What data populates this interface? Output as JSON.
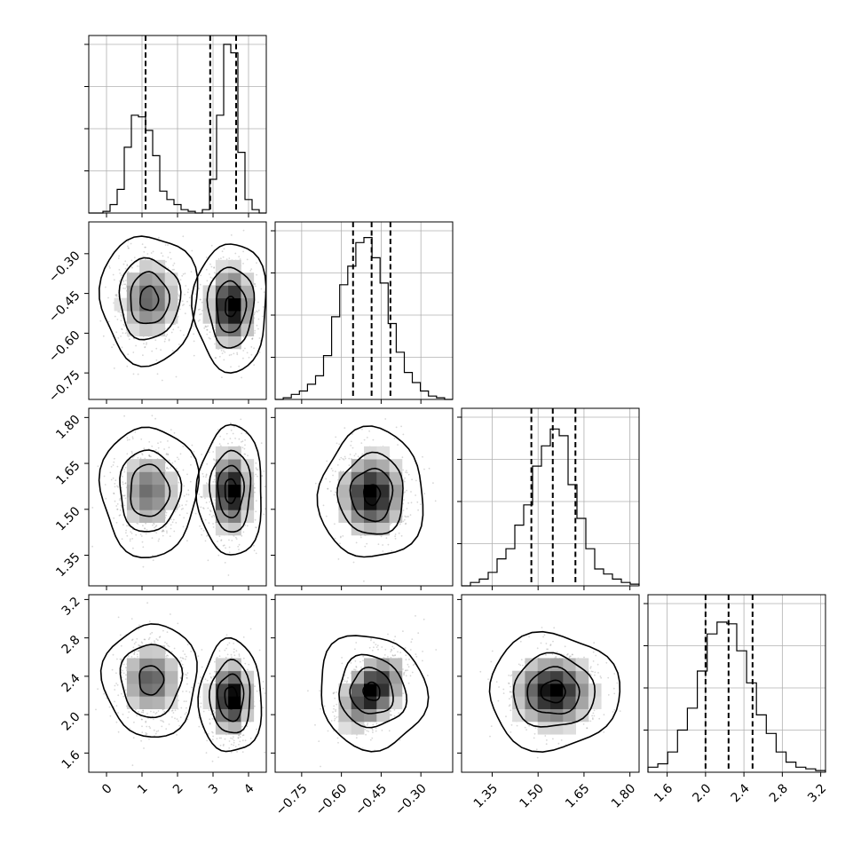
{
  "chart_data": {
    "type": "corner",
    "parameters": [
      {
        "range": [
          -0.5,
          4.5
        ],
        "ticks": [
          0,
          1,
          2,
          3,
          4
        ],
        "tick_labels": [
          "0",
          "1",
          "2",
          "3",
          "4"
        ],
        "quantiles": [
          1.1,
          2.92,
          3.65
        ],
        "hist_bins": [
          0.0,
          0.0,
          0.01,
          0.05,
          0.14,
          0.39,
          0.58,
          0.57,
          0.49,
          0.34,
          0.13,
          0.08,
          0.05,
          0.02,
          0.01,
          0.0,
          0.02,
          0.2,
          0.58,
          1.0,
          0.95,
          0.36,
          0.08,
          0.02,
          0.0
        ]
      },
      {
        "range": [
          -0.85,
          -0.18
        ],
        "ticks": [
          -0.75,
          -0.6,
          -0.45,
          -0.3
        ],
        "tick_labels": [
          "−0.75",
          "−0.60",
          "−0.45",
          "−0.30"
        ],
        "quantiles": [
          -0.556,
          -0.486,
          -0.415
        ],
        "hist_bins": [
          0.0,
          0.01,
          0.03,
          0.05,
          0.09,
          0.14,
          0.26,
          0.49,
          0.68,
          0.79,
          0.93,
          0.96,
          0.84,
          0.69,
          0.45,
          0.28,
          0.16,
          0.1,
          0.05,
          0.02,
          0.01,
          0.0
        ]
      },
      {
        "range": [
          1.25,
          1.83
        ],
        "ticks": [
          1.35,
          1.5,
          1.65,
          1.8
        ],
        "tick_labels": [
          "1.35",
          "1.50",
          "1.65",
          "1.80"
        ],
        "quantiles": [
          1.478,
          1.548,
          1.622
        ],
        "hist_bins": [
          0.0,
          0.02,
          0.04,
          0.08,
          0.16,
          0.22,
          0.36,
          0.48,
          0.71,
          0.83,
          0.93,
          0.89,
          0.6,
          0.4,
          0.22,
          0.1,
          0.07,
          0.04,
          0.02,
          0.01
        ]
      },
      {
        "range": [
          1.4,
          3.25
        ],
        "ticks": [
          1.6,
          2.0,
          2.4,
          2.8,
          3.2
        ],
        "tick_labels": [
          "1.6",
          "2.0",
          "2.4",
          "2.8",
          "3.2"
        ],
        "quantiles": [
          2.0,
          2.24,
          2.49
        ],
        "hist_bins": [
          0.03,
          0.05,
          0.12,
          0.25,
          0.38,
          0.6,
          0.82,
          0.89,
          0.88,
          0.72,
          0.53,
          0.34,
          0.23,
          0.12,
          0.06,
          0.03,
          0.02,
          0.01
        ]
      }
    ],
    "joint_clusters": [
      {
        "row": 1,
        "col": 0,
        "blobs": [
          {
            "mean": [
              1.2,
              -0.47
            ],
            "sd": [
              0.45,
              0.08
            ],
            "peak": 0.55,
            "contours": [
              [
                0.15,
                0.3
              ],
              [
                0.38,
                0.64
              ],
              [
                0.62,
                1.0
              ],
              [
                0.98,
                1.6
              ]
            ]
          },
          {
            "mean": [
              3.5,
              -0.5
            ],
            "sd": [
              0.34,
              0.08
            ],
            "peak": 0.92,
            "contours": [
              [
                0.1,
                0.25
              ],
              [
                0.3,
                0.64
              ],
              [
                0.52,
                1.0
              ],
              [
                0.86,
                1.6
              ]
            ]
          }
        ]
      },
      {
        "row": 2,
        "col": 0,
        "blobs": [
          {
            "mean": [
              1.2,
              1.56
            ],
            "sd": [
              0.45,
              0.07
            ],
            "peak": 0.5,
            "contours": [
              [
                0.35,
                0.64
              ],
              [
                0.62,
                1.0
              ],
              [
                1.0,
                1.6
              ]
            ]
          },
          {
            "mean": [
              3.5,
              1.56
            ],
            "sd": [
              0.3,
              0.07
            ],
            "peak": 0.92,
            "contours": [
              [
                0.1,
                0.3
              ],
              [
                0.32,
                0.64
              ],
              [
                0.52,
                1.0
              ],
              [
                0.86,
                1.6
              ]
            ]
          }
        ]
      },
      {
        "row": 3,
        "col": 0,
        "blobs": [
          {
            "mean": [
              1.25,
              2.36
            ],
            "sd": [
              0.45,
              0.2
            ],
            "peak": 0.55,
            "contours": [
              [
                0.3,
                0.4
              ],
              [
                0.6,
                1.0
              ],
              [
                0.98,
                1.55
              ]
            ]
          },
          {
            "mean": [
              3.5,
              2.18
            ],
            "sd": [
              0.3,
              0.2
            ],
            "peak": 0.92,
            "contours": [
              [
                0.1,
                0.3
              ],
              [
                0.35,
                0.64
              ],
              [
                0.55,
                1.0
              ],
              [
                0.9,
                1.55
              ]
            ]
          }
        ]
      },
      {
        "row": 2,
        "col": 1,
        "blobs": [
          {
            "mean": [
              -0.485,
              1.548
            ],
            "sd": [
              0.065,
              0.07
            ],
            "peak": 1.0,
            "contours": [
              [
                0.1,
                0.25
              ],
              [
                0.3,
                0.64
              ],
              [
                0.5,
                1.0
              ],
              [
                0.85,
                1.6
              ]
            ]
          }
        ]
      },
      {
        "row": 3,
        "col": 1,
        "blobs": [
          {
            "mean": [
              -0.485,
              2.24
            ],
            "sd": [
              0.065,
              0.2
            ],
            "peak": 1.0,
            "rho": 0.45,
            "contours": [
              [
                0.12,
                0.25
              ],
              [
                0.32,
                0.64
              ],
              [
                0.52,
                1.0
              ],
              [
                0.88,
                1.6
              ]
            ]
          }
        ]
      },
      {
        "row": 3,
        "col": 2,
        "blobs": [
          {
            "mean": [
              1.55,
              2.24
            ],
            "sd": [
              0.07,
              0.2
            ],
            "peak": 1.0,
            "contours": [
              [
                0.15,
                0.3
              ],
              [
                0.32,
                0.64
              ],
              [
                0.52,
                1.0
              ],
              [
                0.88,
                1.6
              ]
            ]
          }
        ]
      }
    ],
    "grid": true,
    "title": "",
    "xlabel": "",
    "ylabel": ""
  }
}
